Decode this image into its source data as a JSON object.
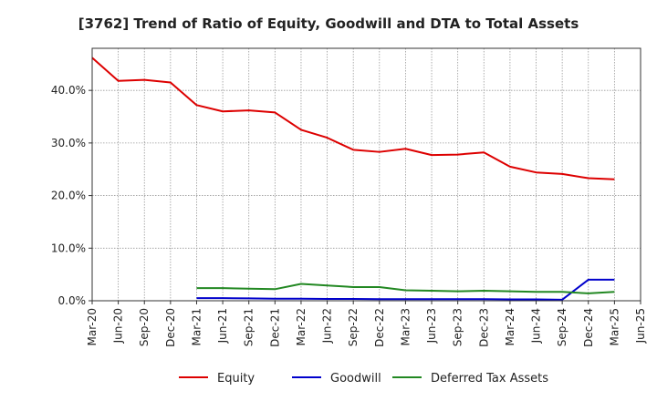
{
  "chart_data": {
    "type": "line",
    "title": "[3762]  Trend of Ratio of Equity, Goodwill and DTA to Total Assets",
    "xlabel": "",
    "ylabel": "",
    "ylim": [
      0,
      48
    ],
    "yticks": [
      0,
      10,
      20,
      30,
      40
    ],
    "ytick_labels": [
      "0.0%",
      "10.0%",
      "20.0%",
      "30.0%",
      "40.0%"
    ],
    "x_categories": [
      "Mar-20",
      "Jun-20",
      "Sep-20",
      "Dec-20",
      "Mar-21",
      "Jun-21",
      "Sep-21",
      "Dec-21",
      "Mar-22",
      "Jun-22",
      "Sep-22",
      "Dec-22",
      "Mar-23",
      "Jun-23",
      "Sep-23",
      "Dec-23",
      "Mar-24",
      "Jun-24",
      "Sep-24",
      "Dec-24",
      "Mar-25",
      "Jun-25"
    ],
    "grid": true,
    "legend_position": "bottom",
    "series": [
      {
        "name": "Equity",
        "color": "#dd0000",
        "values": [
          46.2,
          41.8,
          42.0,
          41.5,
          37.2,
          36.0,
          36.2,
          35.8,
          32.5,
          31.0,
          28.7,
          28.3,
          28.9,
          27.7,
          27.8,
          28.2,
          25.5,
          24.4,
          24.1,
          23.3,
          23.1,
          null
        ]
      },
      {
        "name": "Goodwill",
        "color": "#0000cc",
        "values": [
          null,
          null,
          null,
          null,
          0.5,
          0.5,
          0.45,
          0.4,
          0.4,
          0.35,
          0.35,
          0.3,
          0.3,
          0.3,
          0.3,
          0.3,
          0.25,
          0.25,
          0.2,
          4.0,
          4.0,
          null
        ]
      },
      {
        "name": "Deferred Tax Assets",
        "color": "#228822",
        "values": [
          null,
          null,
          null,
          null,
          2.4,
          2.4,
          2.3,
          2.2,
          3.2,
          2.9,
          2.6,
          2.6,
          2.0,
          1.9,
          1.8,
          1.9,
          1.8,
          1.7,
          1.7,
          1.4,
          1.7,
          null
        ]
      }
    ]
  }
}
